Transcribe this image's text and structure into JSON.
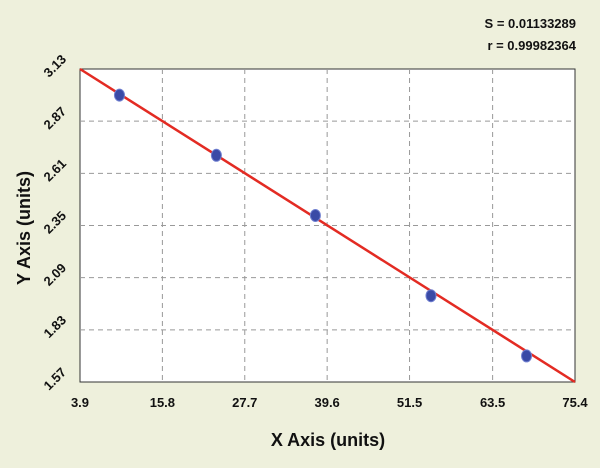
{
  "chart_data": {
    "type": "scatter",
    "title": "",
    "xlabel": "X Axis (units)",
    "ylabel": "Y Axis (units)",
    "xlim": [
      3.9,
      75.4
    ],
    "ylim": [
      1.57,
      3.13
    ],
    "x_ticks": [
      "3.9",
      "15.8",
      "27.7",
      "39.6",
      "51.5",
      "63.5",
      "75.4"
    ],
    "y_ticks": [
      "1.57",
      "1.83",
      "2.09",
      "2.35",
      "2.61",
      "2.87",
      "3.13"
    ],
    "x_tick_values": [
      3.9,
      15.8,
      27.7,
      39.6,
      51.5,
      63.5,
      75.4
    ],
    "y_tick_values": [
      1.57,
      1.83,
      2.09,
      2.35,
      2.61,
      2.87,
      3.13
    ],
    "grid": true,
    "series": [
      {
        "points": [
          {
            "x": 9.6,
            "y": 3.0
          },
          {
            "x": 23.6,
            "y": 2.7
          },
          {
            "x": 37.9,
            "y": 2.4
          },
          {
            "x": 54.6,
            "y": 2.0
          },
          {
            "x": 68.4,
            "y": 1.7
          }
        ]
      }
    ],
    "fit_line": {
      "x": [
        3.9,
        75.4
      ],
      "y": [
        3.13,
        1.57
      ]
    },
    "stats": {
      "s_text": "S = 0.01133289",
      "r_text": "r = 0.99982364"
    },
    "colors": {
      "background": "#eef0dc",
      "plot_background": "#ffffff",
      "fit_line": "#e32b23",
      "points": "#3a4aa6",
      "grid": "#999999"
    }
  }
}
